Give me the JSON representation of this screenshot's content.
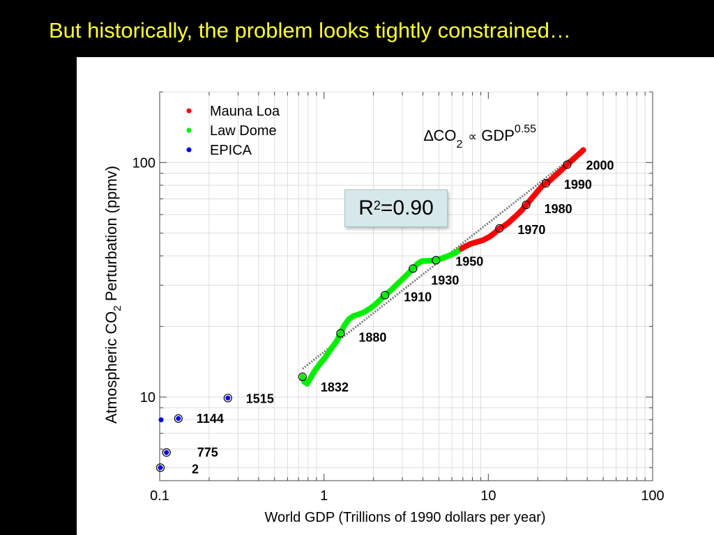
{
  "slide": {
    "title": "But historically, the problem looks tightly constrained…"
  },
  "r2": {
    "label": "R",
    "sup": "2",
    "value": "=0.90"
  },
  "formula": {
    "delta": "∆CO",
    "sub": "2",
    "prop": "∝",
    "gdp": "GDP",
    "exponent": "0.55"
  },
  "chart_data": {
    "type": "scatter",
    "xlabel": "World GDP (Trillions of 1990 dollars per year)",
    "ylabel_parts": {
      "pre": "Atmospheric CO",
      "sub": "2",
      "post": " Perturbation (ppmv)"
    },
    "xscale": "log",
    "yscale": "log",
    "xlim": [
      0.1,
      100
    ],
    "ylim": [
      4.4,
      200
    ],
    "x_ticks": [
      {
        "value": 0.1,
        "label": "0.1"
      },
      {
        "value": 1,
        "label": "1"
      },
      {
        "value": 10,
        "label": "10"
      },
      {
        "value": 100,
        "label": "100"
      }
    ],
    "y_ticks": [
      {
        "value": 10,
        "label": "10"
      },
      {
        "value": 100,
        "label": "100"
      }
    ],
    "grid": true,
    "legend": {
      "placement": "top-left",
      "entries": [
        {
          "name": "Mauna Loa",
          "color": "#ff0000"
        },
        {
          "name": "Law Dome",
          "color": "#00ee00"
        },
        {
          "name": "EPICA",
          "color": "#0000ee"
        }
      ]
    },
    "series": [
      {
        "name": "EPICA",
        "color": "#0000ee",
        "points": [
          [
            0.101,
            5.0
          ],
          [
            0.11,
            5.8
          ],
          [
            0.102,
            8.0
          ],
          [
            0.13,
            8.1
          ],
          [
            0.26,
            9.9
          ]
        ]
      },
      {
        "name": "Law Dome",
        "color": "#00ee00",
        "points": [
          [
            0.74,
            12.2
          ],
          [
            0.76,
            11.6
          ],
          [
            0.79,
            11.4
          ],
          [
            0.82,
            11.9
          ],
          [
            0.87,
            12.8
          ],
          [
            0.94,
            13.8
          ],
          [
            1.02,
            14.8
          ],
          [
            1.1,
            16.0
          ],
          [
            1.2,
            17.4
          ],
          [
            1.26,
            18.7
          ],
          [
            1.33,
            20.2
          ],
          [
            1.42,
            21.5
          ],
          [
            1.52,
            22.2
          ],
          [
            1.62,
            22.5
          ],
          [
            1.75,
            23.0
          ],
          [
            1.9,
            23.8
          ],
          [
            2.05,
            24.8
          ],
          [
            2.2,
            26.0
          ],
          [
            2.35,
            27.2
          ],
          [
            2.55,
            28.5
          ],
          [
            2.75,
            30.0
          ],
          [
            3.0,
            31.8
          ],
          [
            3.25,
            33.6
          ],
          [
            3.48,
            35.3
          ],
          [
            3.7,
            37.0
          ],
          [
            3.95,
            38.0
          ],
          [
            4.3,
            38.1
          ],
          [
            4.8,
            38.3
          ],
          [
            5.3,
            39.2
          ],
          [
            5.9,
            40.3
          ],
          [
            6.4,
            41.5
          ],
          [
            6.7,
            42.5
          ]
        ]
      },
      {
        "name": "Mauna Loa",
        "color": "#ff0000",
        "points": [
          [
            6.9,
            43.0
          ],
          [
            7.3,
            44.0
          ],
          [
            7.8,
            45.0
          ],
          [
            8.5,
            45.8
          ],
          [
            9.3,
            46.7
          ],
          [
            10.2,
            48.3
          ],
          [
            11.0,
            50.3
          ],
          [
            11.7,
            52.4
          ],
          [
            12.4,
            53.5
          ],
          [
            13.2,
            55.2
          ],
          [
            14.1,
            57.6
          ],
          [
            15.1,
            60.2
          ],
          [
            16.1,
            63.0
          ],
          [
            17.0,
            66.0
          ],
          [
            18.1,
            69.5
          ],
          [
            19.2,
            73.0
          ],
          [
            20.3,
            76.5
          ],
          [
            21.3,
            79.5
          ],
          [
            22.4,
            81.5
          ],
          [
            23.8,
            84.0
          ],
          [
            25.3,
            87.5
          ],
          [
            27.0,
            91.0
          ],
          [
            28.8,
            95.0
          ],
          [
            30.2,
            98.0
          ],
          [
            31.7,
            101.0
          ],
          [
            33.2,
            104.0
          ],
          [
            34.7,
            107.0
          ],
          [
            36.3,
            110.0
          ],
          [
            37.8,
            113.0
          ]
        ]
      }
    ],
    "fit_line": {
      "x": [
        0.74,
        38
      ],
      "y": [
        13.2,
        115
      ]
    },
    "annotations": [
      {
        "label": "2",
        "x": 0.101,
        "y": 5.0
      },
      {
        "label": "775",
        "x": 0.11,
        "y": 5.8
      },
      {
        "label": "1144",
        "x": 0.13,
        "y": 8.1
      },
      {
        "label": "1515",
        "x": 0.26,
        "y": 9.9
      },
      {
        "label": "1832",
        "x": 0.74,
        "y": 12.2
      },
      {
        "label": "1880",
        "x": 1.26,
        "y": 18.7
      },
      {
        "label": "1910",
        "x": 2.35,
        "y": 27.2
      },
      {
        "label": "1930",
        "x": 3.48,
        "y": 35.3
      },
      {
        "label": "1950",
        "x": 4.8,
        "y": 38.3
      },
      {
        "label": "1970",
        "x": 11.7,
        "y": 52.4
      },
      {
        "label": "1980",
        "x": 17.0,
        "y": 66.0
      },
      {
        "label": "1990",
        "x": 22.4,
        "y": 81.5
      },
      {
        "label": "2000",
        "x": 30.2,
        "y": 98.0
      }
    ]
  }
}
